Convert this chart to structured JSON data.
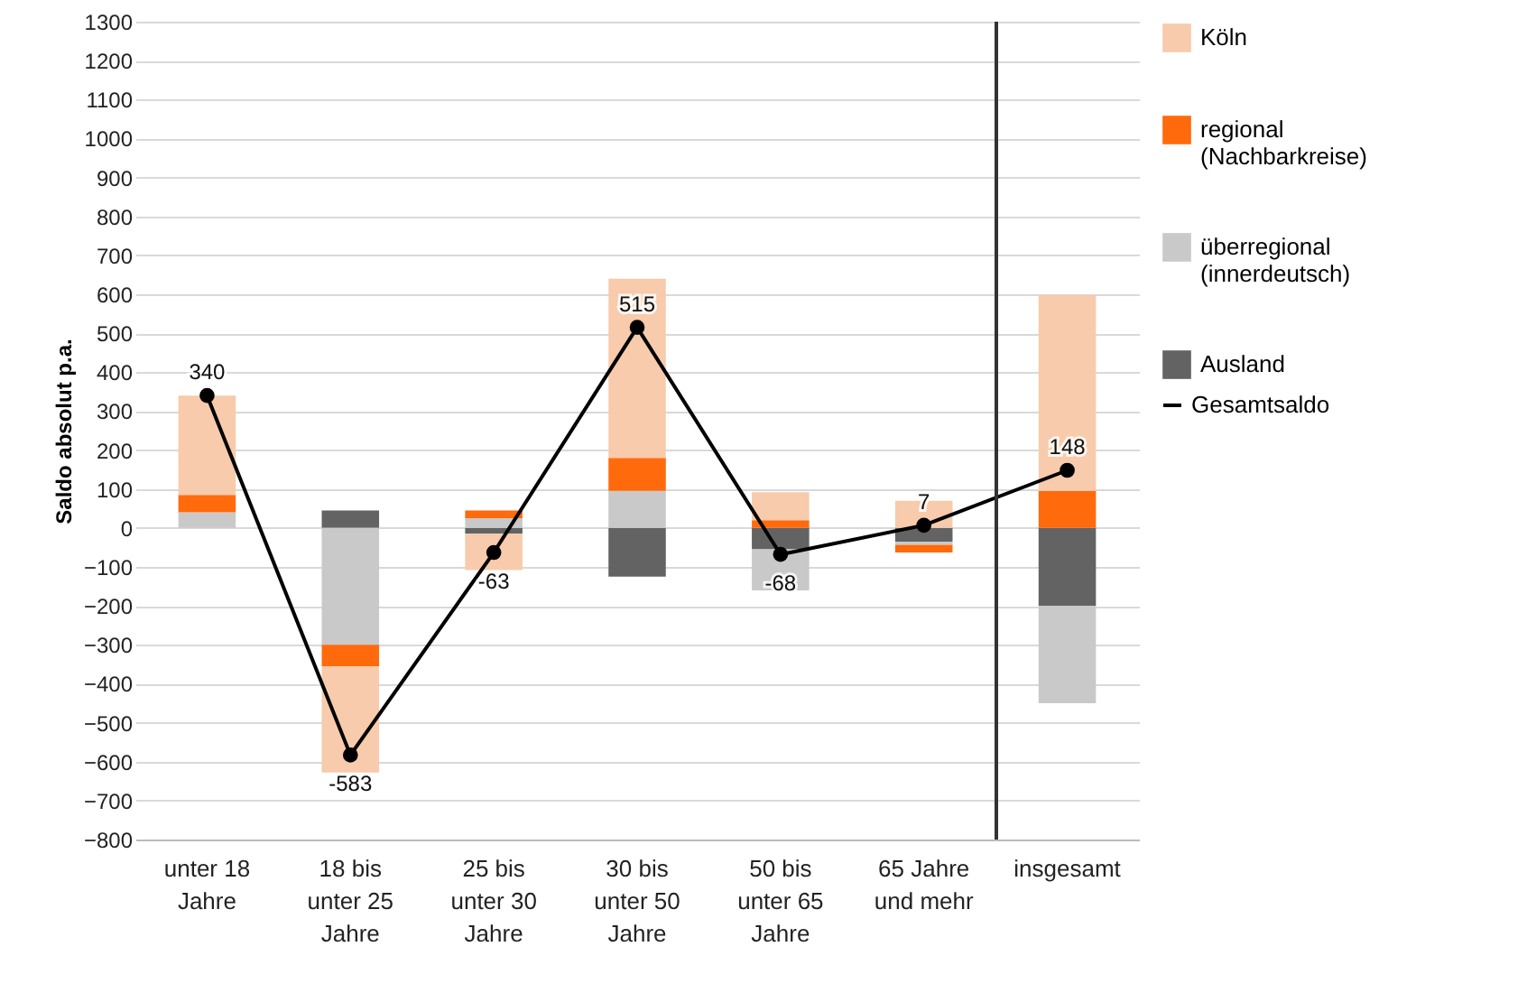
{
  "chart_data": {
    "type": "bar",
    "stacked": true,
    "ylabel": "Saldo absolut p.a.",
    "categories": [
      "unter 18 Jahre",
      "18 bis unter 25 Jahre",
      "25 bis unter 30 Jahre",
      "30 bis unter 50 Jahre",
      "50 bis unter 65 Jahre",
      "65 Jahre und mehr",
      "insgesamt"
    ],
    "series": [
      {
        "name": "Ausland",
        "color": "#636363",
        "values": [
          0,
          45,
          -15,
          -125,
          -55,
          -35,
          -200
        ]
      },
      {
        "name": "überregional (innerdeutsch)",
        "color": "#c9c9c9",
        "values": [
          40,
          -300,
          25,
          95,
          -105,
          -8,
          -250
        ]
      },
      {
        "name": "regional (Nachbarkreise)",
        "color": "#ff6a0d",
        "values": [
          45,
          -55,
          20,
          85,
          20,
          -20,
          95
        ]
      },
      {
        "name": "Köln",
        "color": "#f7cbab",
        "values": [
          255,
          -273,
          -93,
          460,
          72,
          70,
          503
        ]
      },
      {
        "name": "Gesamtsaldo",
        "type": "line",
        "color": "#000000",
        "marker": "circle",
        "values": [
          340,
          -583,
          -63,
          515,
          -68,
          7,
          148
        ],
        "value_labels": [
          "340",
          "-583",
          "-63",
          "515",
          "-68",
          "7",
          "148"
        ]
      }
    ],
    "ylim": [
      -800,
      1300
    ],
    "yticks": [
      -800,
      -700,
      -600,
      -500,
      -400,
      -300,
      -200,
      -100,
      0,
      100,
      200,
      300,
      400,
      500,
      600,
      700,
      800,
      900,
      1000,
      1100,
      1200,
      1300
    ],
    "grid": "y",
    "legend": "right"
  }
}
